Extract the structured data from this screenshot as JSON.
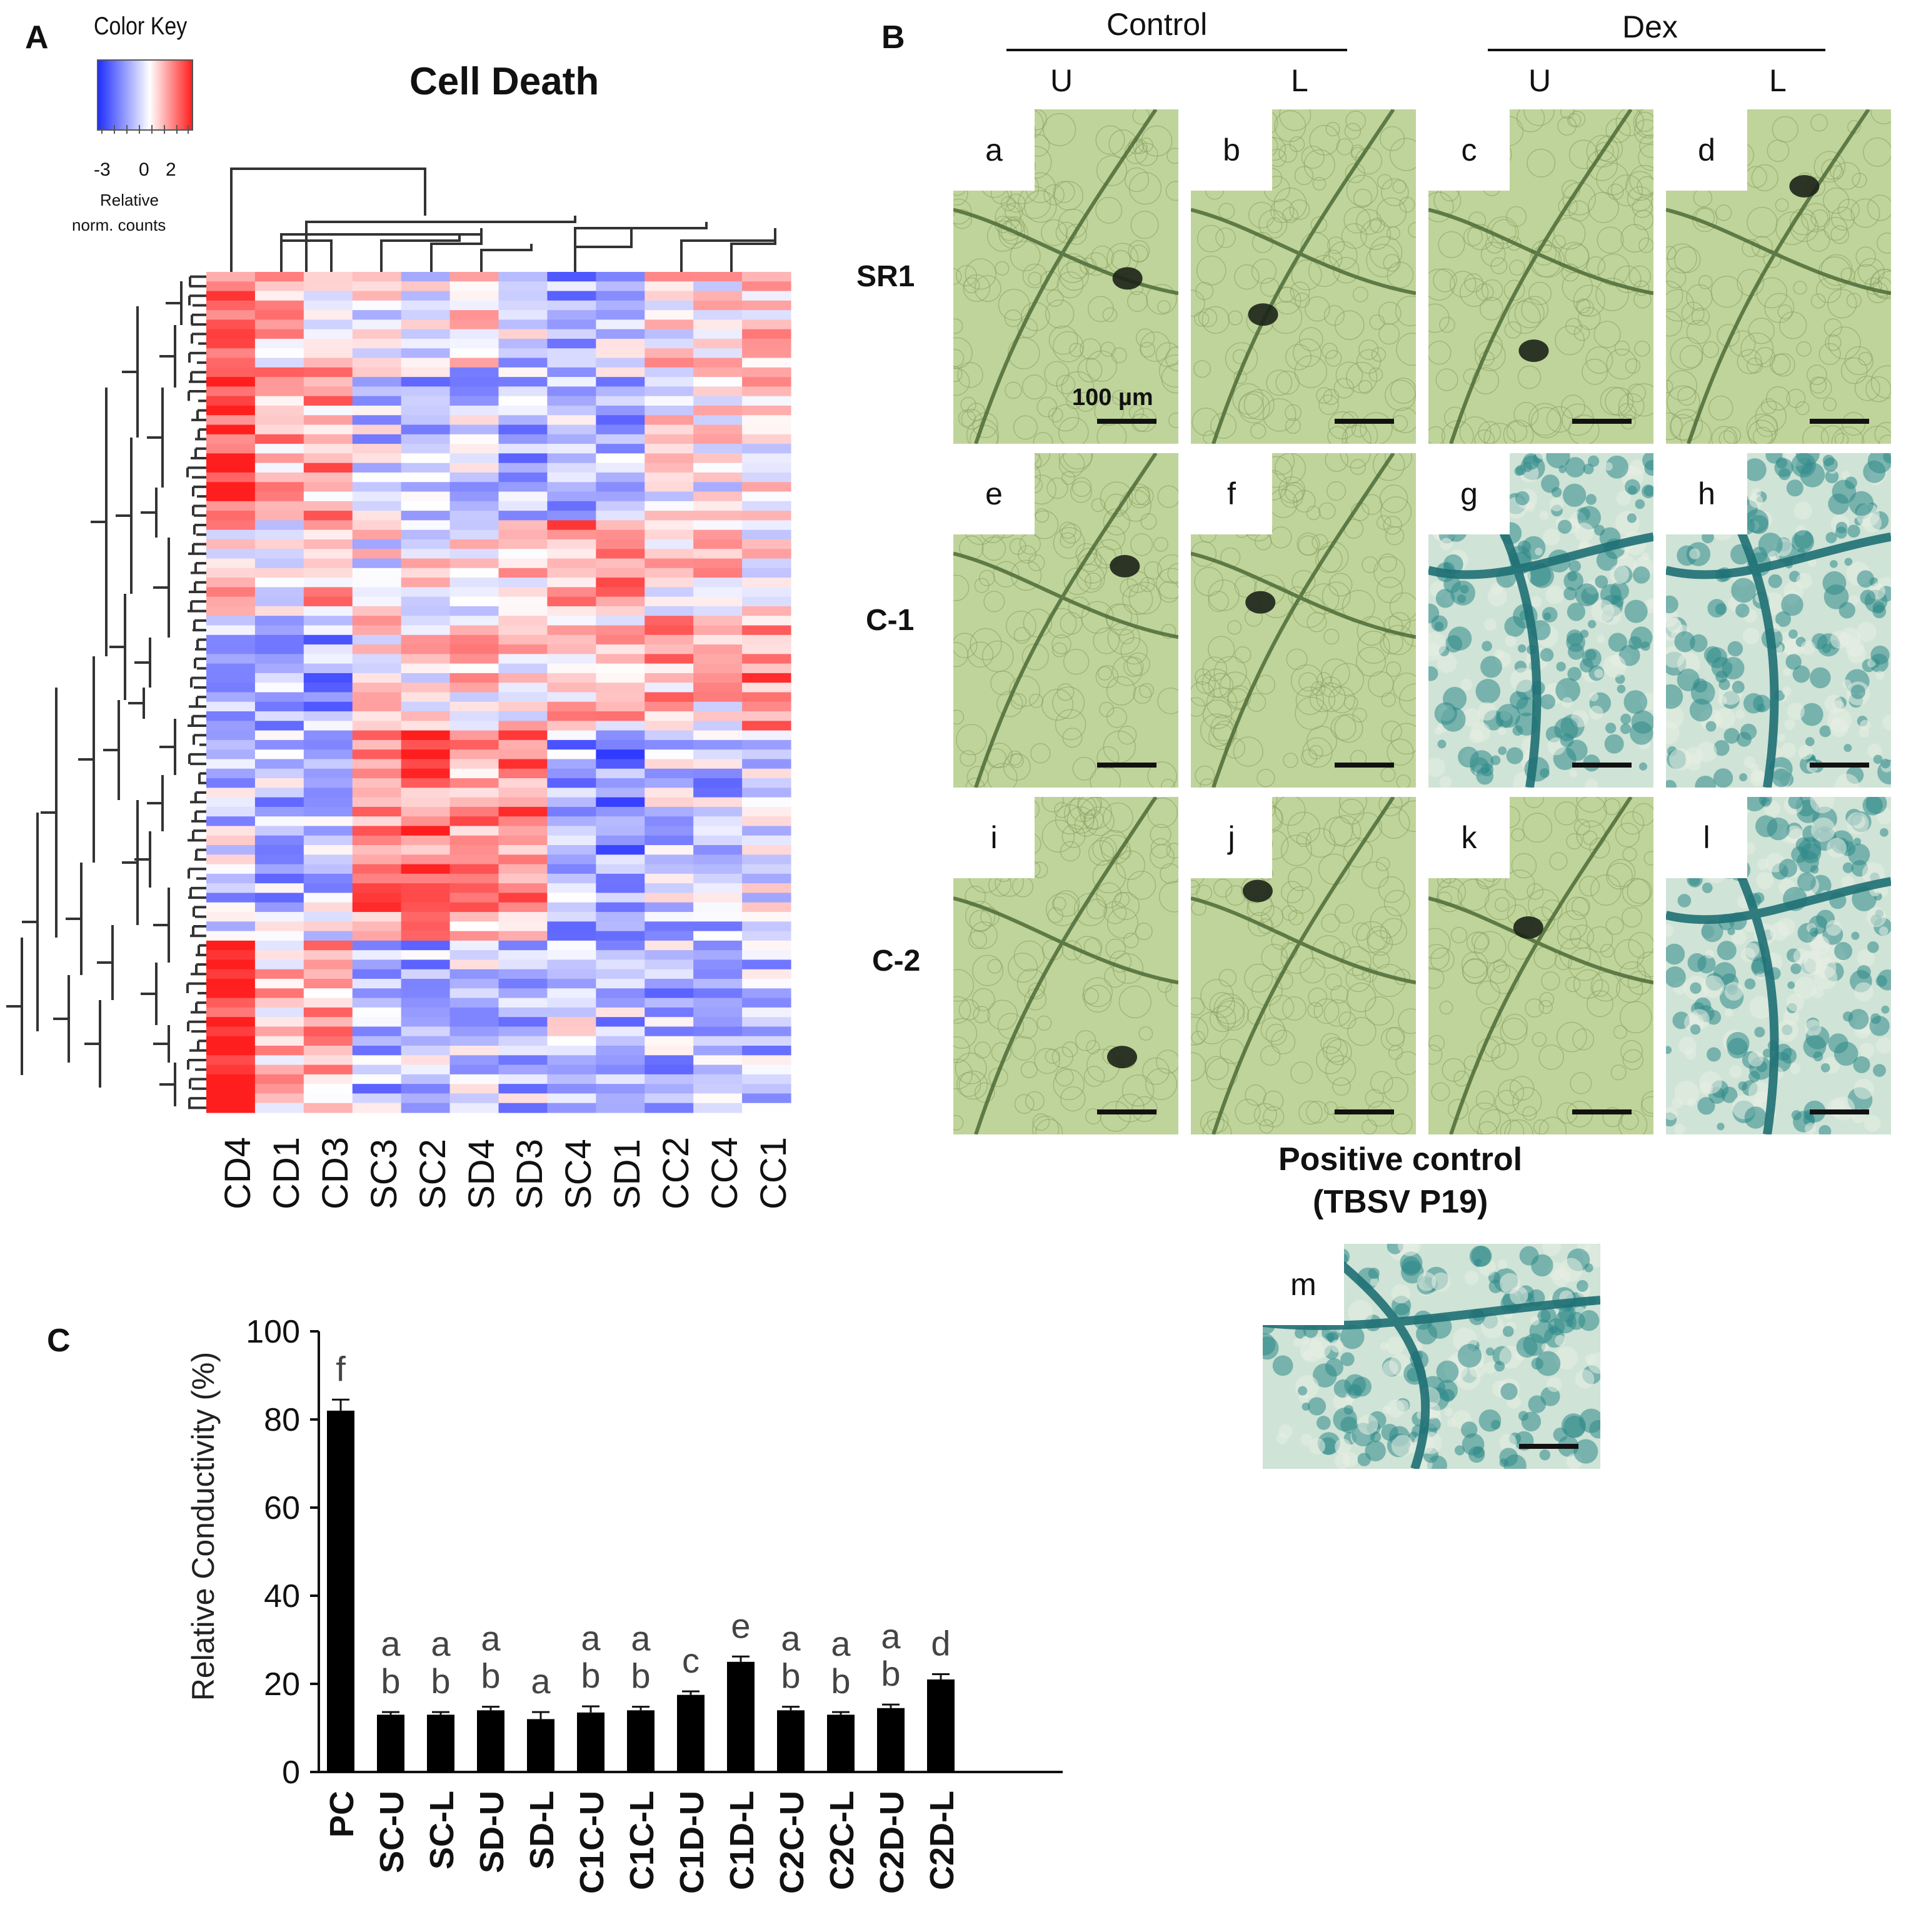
{
  "panelA": {
    "letter": "A",
    "title": "Cell Death",
    "colorKey": {
      "title": "Color Key",
      "ticks": [
        "-3",
        "0",
        "2"
      ],
      "caption_line1": "Relative",
      "caption_line2": "norm. counts",
      "low_color": "#1f2fff",
      "mid_color": "#ffffff",
      "high_color": "#ff2020"
    },
    "columns": [
      "CD4",
      "CD1",
      "CD3",
      "SC3",
      "SC2",
      "SD4",
      "SD3",
      "SC4",
      "SD1",
      "CC2",
      "CC4",
      "CC1"
    ]
  },
  "panelB": {
    "letter": "B",
    "groups": [
      "Control",
      "Dex"
    ],
    "columns": [
      "U",
      "L",
      "U",
      "L"
    ],
    "rows": [
      "SR1",
      "C-1",
      "C-2"
    ],
    "tiles": [
      {
        "label": "a",
        "stain": "none"
      },
      {
        "label": "b",
        "stain": "none"
      },
      {
        "label": "c",
        "stain": "none"
      },
      {
        "label": "d",
        "stain": "none"
      },
      {
        "label": "e",
        "stain": "none"
      },
      {
        "label": "f",
        "stain": "none"
      },
      {
        "label": "g",
        "stain": "blue"
      },
      {
        "label": "h",
        "stain": "blue"
      },
      {
        "label": "i",
        "stain": "none"
      },
      {
        "label": "j",
        "stain": "none"
      },
      {
        "label": "k",
        "stain": "none"
      },
      {
        "label": "l",
        "stain": "blue"
      }
    ],
    "scale_label": "100 µm",
    "positive_control_line1": "Positive control",
    "positive_control_line2": "(TBSV P19)",
    "positive_tile_label": "m"
  },
  "chart_data": {
    "type": "bar",
    "letter": "C",
    "title": "",
    "ylabel": "Relative Conductivity (%)",
    "xlabel": "",
    "ylim": [
      0,
      100
    ],
    "yticks": [
      0,
      20,
      40,
      60,
      80,
      100
    ],
    "categories": [
      "PC",
      "SC-U",
      "SC-L",
      "SD-U",
      "SD-L",
      "C1C-U",
      "C1C-L",
      "C1D-U",
      "C1D-L",
      "C2C-U",
      "C2C-L",
      "C2D-U",
      "C2D-L"
    ],
    "values": [
      82,
      13,
      13,
      14,
      12,
      13.5,
      14,
      17.5,
      25,
      14,
      13,
      14.5,
      21
    ],
    "errors": [
      2.5,
      0.6,
      0.6,
      0.8,
      1.6,
      1.4,
      0.8,
      0.8,
      1.2,
      0.8,
      0.6,
      0.8,
      1.2
    ],
    "letters": [
      [
        "f"
      ],
      [
        "a",
        "b"
      ],
      [
        "a",
        "b"
      ],
      [
        "a",
        "b"
      ],
      [
        "a"
      ],
      [
        "a",
        "b"
      ],
      [
        "a",
        "b"
      ],
      [
        "c"
      ],
      [
        "e"
      ],
      [
        "a",
        "b"
      ],
      [
        "a",
        "b"
      ],
      [
        "a",
        "b"
      ],
      [
        "d"
      ]
    ],
    "bar_color": "#000000"
  }
}
